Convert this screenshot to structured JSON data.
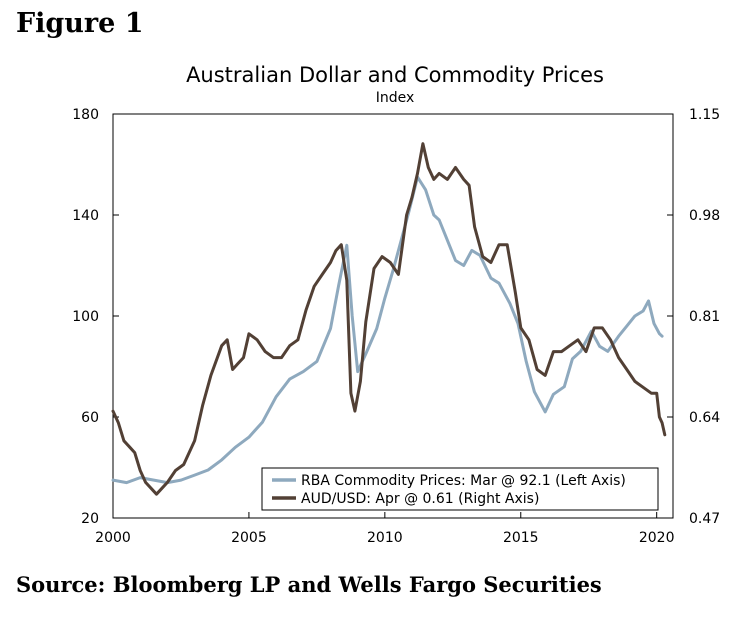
{
  "figure_label": "Figure 1",
  "source": "Source: Bloomberg LP and Wells Fargo Securities",
  "chart_data": {
    "type": "line",
    "title": "Australian Dollar and Commodity Prices",
    "subtitle": "Index",
    "xlabel": "",
    "ylabel_left": "",
    "ylabel_right": "",
    "x_ticks": [
      "2000",
      "2005",
      "2010",
      "2015",
      "2020"
    ],
    "xlim": [
      2000,
      2020.6
    ],
    "ylim_left": [
      20,
      180
    ],
    "ylim_right": [
      0.47,
      1.15
    ],
    "y_ticks_left": [
      "20",
      "60",
      "100",
      "140",
      "180"
    ],
    "y_ticks_right": [
      "0.47",
      "0.64",
      "0.81",
      "0.98",
      "1.15"
    ],
    "grid": false,
    "legend_position": "bottom-right",
    "colors": {
      "commodity": "#8EA9BE",
      "aud": "#524035"
    },
    "series": [
      {
        "name": "RBA Commodity Prices: Mar @ 92.1 (Left Axis)",
        "axis": "left",
        "color": "#8EA9BE",
        "x": [
          2000.0,
          2000.5,
          2001.0,
          2001.5,
          2002.0,
          2002.5,
          2003.0,
          2003.5,
          2004.0,
          2004.5,
          2005.0,
          2005.5,
          2006.0,
          2006.5,
          2007.0,
          2007.5,
          2008.0,
          2008.3,
          2008.6,
          2008.8,
          2009.0,
          2009.3,
          2009.7,
          2010.0,
          2010.3,
          2010.6,
          2010.9,
          2011.2,
          2011.5,
          2011.8,
          2012.0,
          2012.3,
          2012.6,
          2012.9,
          2013.2,
          2013.5,
          2013.9,
          2014.2,
          2014.6,
          2014.9,
          2015.2,
          2015.5,
          2015.9,
          2016.2,
          2016.6,
          2016.9,
          2017.2,
          2017.6,
          2017.9,
          2018.2,
          2018.6,
          2018.9,
          2019.2,
          2019.5,
          2019.7,
          2019.9,
          2020.1,
          2020.2
        ],
        "values": [
          35,
          34,
          36,
          35,
          34,
          35,
          37,
          39,
          43,
          48,
          52,
          58,
          68,
          75,
          78,
          82,
          95,
          112,
          128,
          100,
          78,
          85,
          95,
          107,
          118,
          130,
          142,
          155,
          150,
          140,
          138,
          130,
          122,
          120,
          126,
          124,
          115,
          113,
          105,
          97,
          82,
          70,
          62,
          69,
          72,
          83,
          86,
          94,
          88,
          86,
          92,
          96,
          100,
          102,
          106,
          97,
          93,
          92
        ]
      },
      {
        "name": "AUD/USD: Apr @ 0.61 (Right Axis)",
        "axis": "right",
        "color": "#524035",
        "x": [
          2000.0,
          2000.2,
          2000.4,
          2000.6,
          2000.8,
          2001.0,
          2001.2,
          2001.4,
          2001.6,
          2001.8,
          2002.0,
          2002.3,
          2002.6,
          2003.0,
          2003.3,
          2003.6,
          2004.0,
          2004.2,
          2004.4,
          2004.6,
          2004.8,
          2005.0,
          2005.3,
          2005.6,
          2005.9,
          2006.2,
          2006.5,
          2006.8,
          2007.1,
          2007.4,
          2007.7,
          2008.0,
          2008.2,
          2008.4,
          2008.6,
          2008.75,
          2008.9,
          2009.1,
          2009.3,
          2009.6,
          2009.9,
          2010.2,
          2010.5,
          2010.8,
          2011.0,
          2011.2,
          2011.4,
          2011.6,
          2011.8,
          2012.0,
          2012.3,
          2012.6,
          2012.9,
          2013.1,
          2013.3,
          2013.6,
          2013.9,
          2014.2,
          2014.5,
          2014.8,
          2015.0,
          2015.3,
          2015.6,
          2015.9,
          2016.2,
          2016.5,
          2016.8,
          2017.1,
          2017.4,
          2017.7,
          2018.0,
          2018.3,
          2018.6,
          2018.9,
          2019.2,
          2019.5,
          2019.8,
          2020.0,
          2020.1,
          2020.2,
          2020.3
        ],
        "values": [
          0.65,
          0.63,
          0.6,
          0.59,
          0.58,
          0.55,
          0.53,
          0.52,
          0.51,
          0.52,
          0.53,
          0.55,
          0.56,
          0.6,
          0.66,
          0.71,
          0.76,
          0.77,
          0.72,
          0.73,
          0.74,
          0.78,
          0.77,
          0.75,
          0.74,
          0.74,
          0.76,
          0.77,
          0.82,
          0.86,
          0.88,
          0.9,
          0.92,
          0.93,
          0.87,
          0.68,
          0.65,
          0.7,
          0.8,
          0.89,
          0.91,
          0.9,
          0.88,
          0.98,
          1.01,
          1.05,
          1.1,
          1.06,
          1.04,
          1.05,
          1.04,
          1.06,
          1.04,
          1.03,
          0.96,
          0.91,
          0.9,
          0.93,
          0.93,
          0.85,
          0.79,
          0.77,
          0.72,
          0.71,
          0.75,
          0.75,
          0.76,
          0.77,
          0.75,
          0.79,
          0.79,
          0.77,
          0.74,
          0.72,
          0.7,
          0.69,
          0.68,
          0.68,
          0.64,
          0.63,
          0.61
        ]
      }
    ]
  }
}
